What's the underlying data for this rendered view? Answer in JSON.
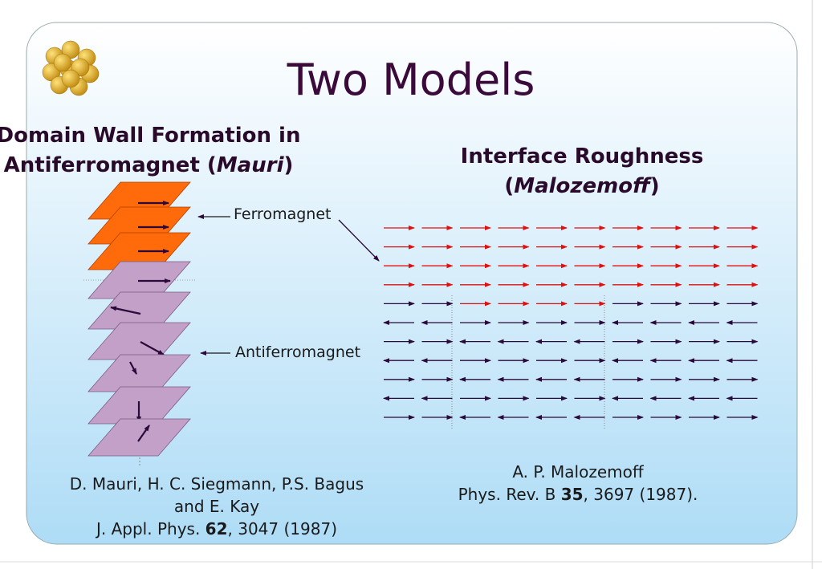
{
  "title": "Two Models",
  "left": {
    "heading_line1": "Domain Wall Formation in",
    "heading_line2_pre": "Antiferromagnet (",
    "heading_italic": "Mauri",
    "heading_close": ")",
    "labels": [
      "Ferromagnet",
      "Antiferromagnet"
    ],
    "citation": {
      "line1": "D. Mauri, H. C. Siegmann, P.S. Bagus",
      "line2": "and E. Kay",
      "line3_pre": "J. Appl. Phys. ",
      "volume": "62",
      "line3_post": ", 3047 (1987)"
    }
  },
  "right": {
    "heading_line1": "Interface Roughness",
    "heading_line2_pre": "(",
    "heading_italic": "Malozemoff",
    "heading_close": ")",
    "citation": {
      "line1": "A. P. Malozemoff",
      "line2_pre": "Phys. Rev. B ",
      "volume": "35",
      "line2_post": ", 3697 (1987)."
    }
  }
}
